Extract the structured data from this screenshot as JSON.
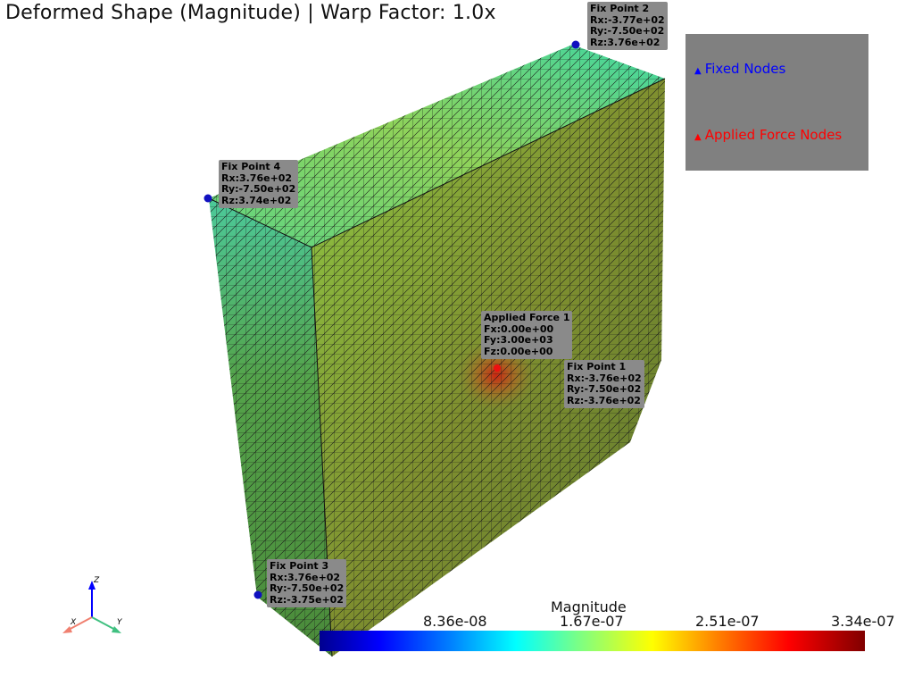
{
  "title": "Deformed Shape (Magnitude) | Warp Factor: 1.0x",
  "annotations": {
    "fix2": {
      "name": "Fix Point 2",
      "l1": "Rx:-3.77e+02",
      "l2": "Ry:-7.50e+02",
      "l3": "Rz:3.76e+02"
    },
    "fix4": {
      "name": "Fix Point 4",
      "l1": "Rx:3.76e+02",
      "l2": "Ry:-7.50e+02",
      "l3": "Rz:3.74e+02"
    },
    "force1": {
      "name": "Applied Force 1",
      "l1": "Fx:0.00e+00",
      "l2": "Fy:3.00e+03",
      "l3": "Fz:0.00e+00"
    },
    "fix1": {
      "name": "Fix Point 1",
      "l1": "Rx:-3.76e+02",
      "l2": "Ry:-7.50e+02",
      "l3": "Rz:-3.76e+02"
    },
    "fix3": {
      "name": "Fix Point 3",
      "l1": "Rx:3.76e+02",
      "l2": "Ry:-7.50e+02",
      "l3": "Rz:-3.75e+02"
    }
  },
  "legend": {
    "fixed": {
      "label": "Fixed Nodes",
      "color": "#0000ff"
    },
    "applied": {
      "label": "Applied Force Nodes",
      "color": "#ff0000"
    }
  },
  "colorbar": {
    "title": "Magnitude",
    "ticks": [
      "8.36e-08",
      "1.67e-07",
      "2.51e-07",
      "3.34e-07"
    ],
    "colormap": "jet"
  },
  "axes": {
    "x": "X",
    "y": "Y",
    "z": "Z"
  },
  "colors": {
    "fixed_node": "#0000ff",
    "force_node": "#ff0000",
    "annotation_bg": "#8a8a8a",
    "legend_bg": "#808080"
  }
}
